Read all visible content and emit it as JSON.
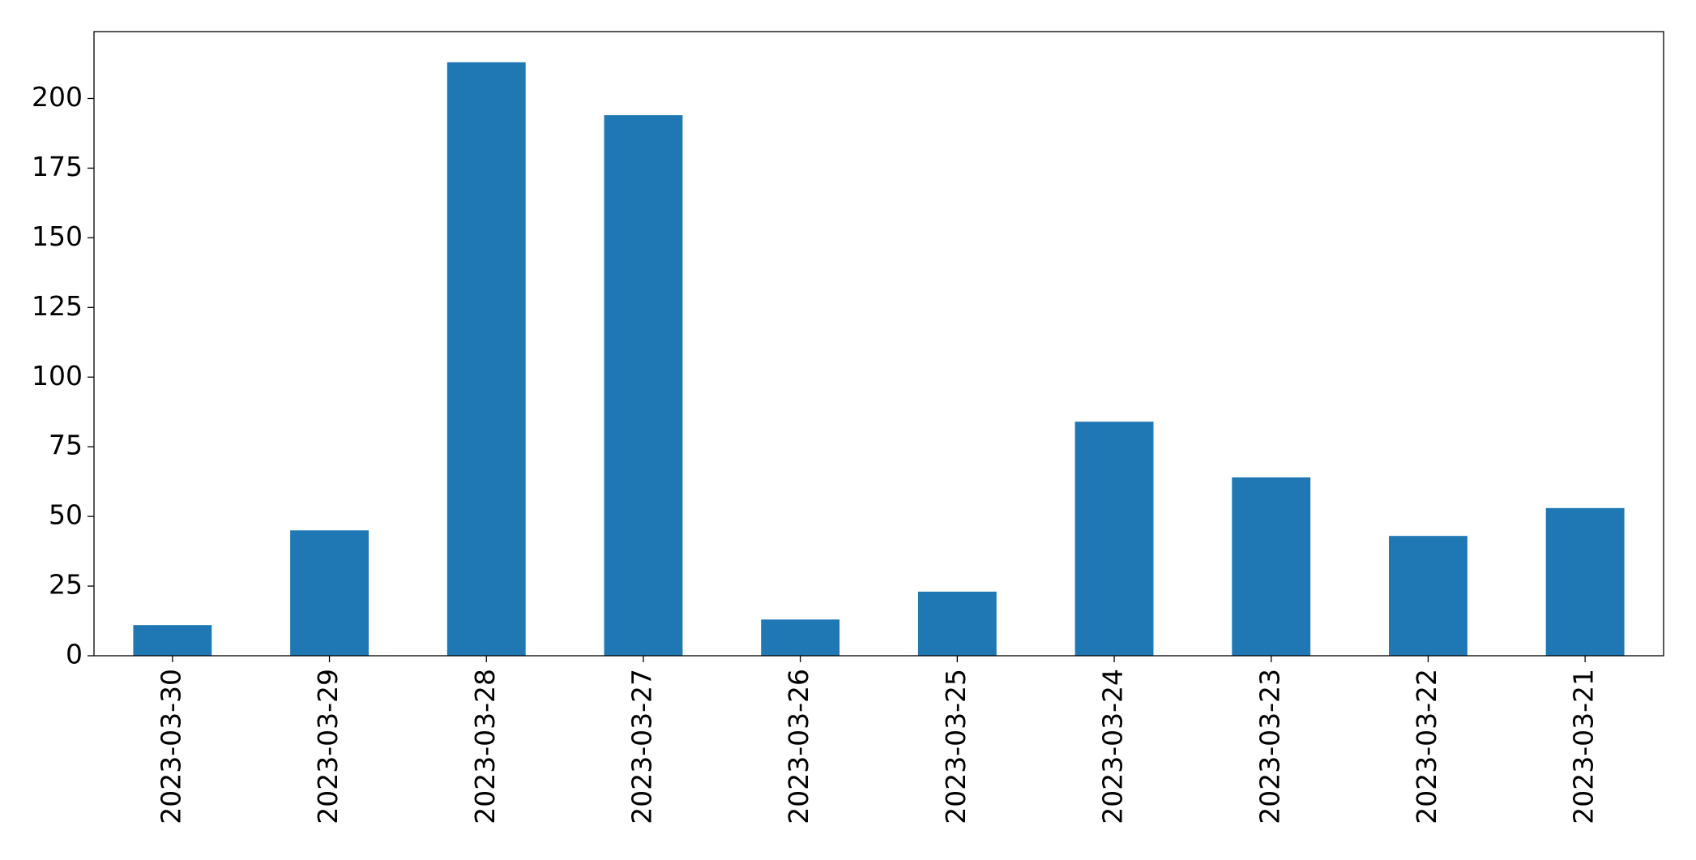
{
  "chart_data": {
    "type": "bar",
    "categories": [
      "2023-03-30",
      "2023-03-29",
      "2023-03-28",
      "2023-03-27",
      "2023-03-26",
      "2023-03-25",
      "2023-03-24",
      "2023-03-23",
      "2023-03-22",
      "2023-03-21"
    ],
    "values": [
      11,
      45,
      213,
      194,
      13,
      23,
      84,
      64,
      43,
      53
    ],
    "color": "#1f77b4",
    "ylim": [
      0,
      224
    ],
    "yticks": [
      0,
      25,
      50,
      75,
      100,
      125,
      150,
      175,
      200
    ],
    "grid": false
  }
}
